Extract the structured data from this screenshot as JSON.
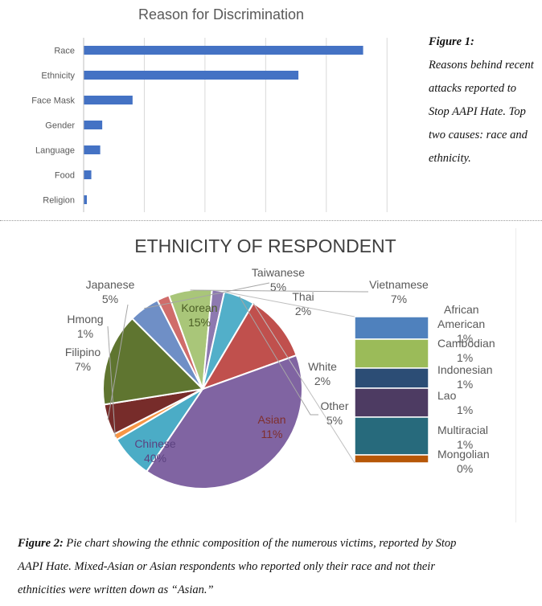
{
  "bar_chart": {
    "type": "bar",
    "orientation": "horizontal",
    "title": "Reason for Discrimination",
    "categories": [
      "Race",
      "Ethnicity",
      "Face Mask",
      "Gender",
      "Language",
      "Food",
      "Religion"
    ],
    "values": [
      69,
      53,
      12,
      4.5,
      4,
      1.8,
      0.7
    ],
    "xlim": [
      0,
      75
    ],
    "grid": true,
    "bar_color": "#4472C4"
  },
  "pie_chart": {
    "type": "pie",
    "title": "ETHNICITY OF RESPONDENT",
    "slices": [
      {
        "name": "Taiwanese",
        "value": 5,
        "label": "5%",
        "color": "#6F8FC6"
      },
      {
        "name": "Thai",
        "value": 2,
        "label": "2%",
        "color": "#D06C6A"
      },
      {
        "name": "Vietnamese",
        "value": 7,
        "label": "7%",
        "color": "#A9C679"
      },
      {
        "name": "White",
        "value": 2,
        "label": "2%",
        "color": "#8D79B0"
      },
      {
        "name": "Other",
        "value": 5,
        "label": "5%",
        "color": "#52AFC9"
      },
      {
        "name": "Asian",
        "value": 11,
        "label": "11%",
        "color": "#C0504D"
      },
      {
        "name": "Chinese",
        "value": 40,
        "label": "40%",
        "color": "#8064A2"
      },
      {
        "name": "Filipino",
        "value": 7,
        "label": "7%",
        "color": "#4BACC6"
      },
      {
        "name": "Hmong",
        "value": 1,
        "label": "1%",
        "color": "#F79646"
      },
      {
        "name": "Japanese",
        "value": 5,
        "label": "5%",
        "color": "#772C2A"
      },
      {
        "name": "Korean",
        "value": 15,
        "label": "15%",
        "color": "#5F7530"
      }
    ],
    "other_breakdown": [
      {
        "name": "African American",
        "label": "1%",
        "color": "#4F81BD"
      },
      {
        "name": "Cambodian",
        "label": "1%",
        "color": "#9BBB59"
      },
      {
        "name": "Indonesian",
        "label": "1%",
        "color": "#2C4D75"
      },
      {
        "name": "Lao",
        "label": "1%",
        "color": "#4D3B62"
      },
      {
        "name": "Multiracial",
        "label": "1%",
        "color": "#276A7C"
      },
      {
        "name": "Mongolian",
        "label": "0%",
        "color": "#B65708"
      }
    ]
  },
  "captions": {
    "fig1_lead": "Figure 1:",
    "fig1_text": "Reasons behind recent attacks reported to Stop AAPI Hate. Top two causes: race and ethnicity.",
    "fig2_lead": "Figure 2:",
    "fig2_line1": " Pie chart showing the ethnic composition of the numerous victims, reported by Stop",
    "fig2_line2": "AAPI Hate. Mixed-Asian or Asian respondents who reported only their race and not their",
    "fig2_line3": "ethnicities were written down as “Asian.”"
  }
}
